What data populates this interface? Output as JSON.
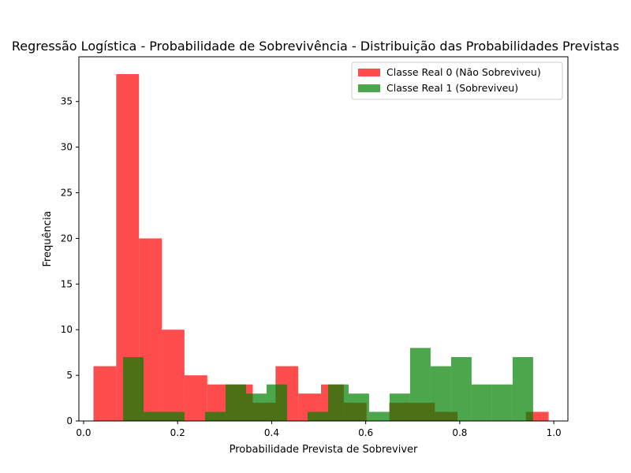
{
  "chart_data": {
    "type": "histogram",
    "title": "Regressão Logística - Probabilidade de Sobrevivência - Distribuição das Probabilidades Previstas",
    "xlabel": "Probabilidade Prevista de Sobreviver",
    "ylabel": "Frequência",
    "xlim": [
      -0.01,
      1.03
    ],
    "ylim": [
      0,
      39.9
    ],
    "xticks": [
      {
        "value": 0.0,
        "label": "0.0"
      },
      {
        "value": 0.2,
        "label": "0.2"
      },
      {
        "value": 0.4,
        "label": "0.4"
      },
      {
        "value": 0.6,
        "label": "0.6"
      },
      {
        "value": 0.8,
        "label": "0.8"
      },
      {
        "value": 1.0,
        "label": "1.0"
      }
    ],
    "yticks": [
      {
        "value": 0,
        "label": "0"
      },
      {
        "value": 5,
        "label": "5"
      },
      {
        "value": 10,
        "label": "10"
      },
      {
        "value": 15,
        "label": "15"
      },
      {
        "value": 20,
        "label": "20"
      },
      {
        "value": 25,
        "label": "25"
      },
      {
        "value": 30,
        "label": "30"
      },
      {
        "value": 35,
        "label": "35"
      }
    ],
    "grid": false,
    "legend_position": "top-right",
    "series": [
      {
        "name": "Classe Real 0 (Não Sobreviveu)",
        "color": "#ff0000",
        "alpha": 0.7,
        "bin_edges": [
          0.021,
          0.0694,
          0.1178,
          0.1662,
          0.2146,
          0.263,
          0.3114,
          0.3598,
          0.4082,
          0.4566,
          0.505,
          0.5534,
          0.6018,
          0.6502,
          0.6986,
          0.747,
          0.7954,
          0.8438,
          0.8922,
          0.9406,
          0.989
        ],
        "counts": [
          6,
          38,
          20,
          10,
          5,
          4,
          4,
          2,
          6,
          3,
          4,
          2,
          0,
          2,
          2,
          1,
          0,
          0,
          0,
          1
        ]
      },
      {
        "name": "Classe Real 1 (Sobreviveu)",
        "color": "#008000",
        "alpha": 0.7,
        "bin_edges": [
          0.084,
          0.1276,
          0.1712,
          0.2148,
          0.2584,
          0.302,
          0.3456,
          0.3892,
          0.4328,
          0.4764,
          0.52,
          0.5636,
          0.6072,
          0.6508,
          0.6944,
          0.738,
          0.7816,
          0.8252,
          0.8688,
          0.9124,
          0.956
        ],
        "counts": [
          7,
          1,
          1,
          0,
          1,
          4,
          3,
          4,
          0,
          1,
          4,
          3,
          1,
          3,
          8,
          6,
          7,
          4,
          4,
          7
        ]
      }
    ]
  }
}
